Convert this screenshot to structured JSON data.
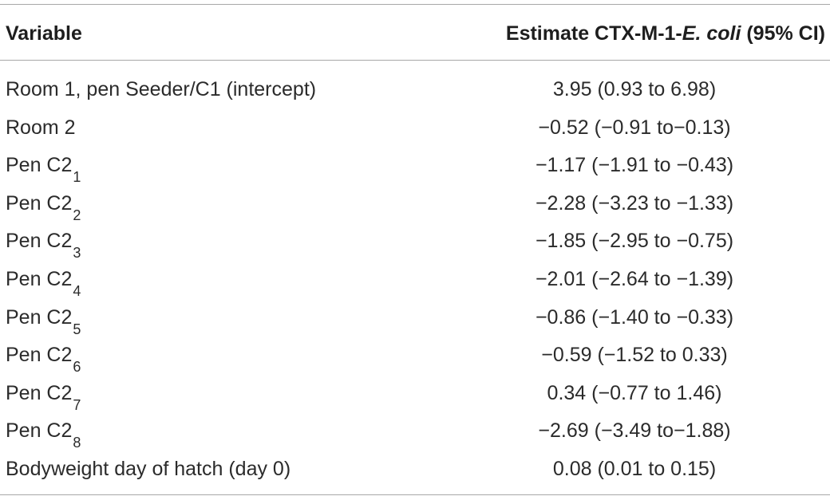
{
  "table": {
    "headers": {
      "variable": "Variable",
      "estimate_prefix": "Estimate CTX-M-1-",
      "estimate_italic": "E. coli",
      "estimate_suffix": " (95% CI)"
    },
    "rows": [
      {
        "label": "Room 1, pen Seeder/C1 (intercept)",
        "sub": "",
        "estimate": "3.95 (0.93 to 6.98)"
      },
      {
        "label": "Room 2",
        "sub": "",
        "estimate": "−0.52 (−0.91 to−0.13)"
      },
      {
        "label": "Pen C2",
        "sub": "1",
        "estimate": "−1.17 (−1.91 to −0.43)"
      },
      {
        "label": "Pen C2",
        "sub": "2",
        "estimate": "−2.28 (−3.23 to −1.33)"
      },
      {
        "label": "Pen C2",
        "sub": "3",
        "estimate": "−1.85 (−2.95 to −0.75)"
      },
      {
        "label": "Pen C2",
        "sub": "4",
        "estimate": "−2.01 (−2.64 to −1.39)"
      },
      {
        "label": "Pen C2",
        "sub": "5",
        "estimate": "−0.86 (−1.40 to −0.33)"
      },
      {
        "label": "Pen C2",
        "sub": "6",
        "estimate": "−0.59 (−1.52 to 0.33)"
      },
      {
        "label": "Pen C2",
        "sub": "7",
        "estimate": "0.34 (−0.77 to 1.46)"
      },
      {
        "label": "Pen C2",
        "sub": "8",
        "estimate": "−2.69 (−3.49 to−1.88)"
      },
      {
        "label": "Bodyweight day of hatch (day 0)",
        "sub": "",
        "estimate": "0.08 (0.01 to 0.15)"
      }
    ]
  }
}
